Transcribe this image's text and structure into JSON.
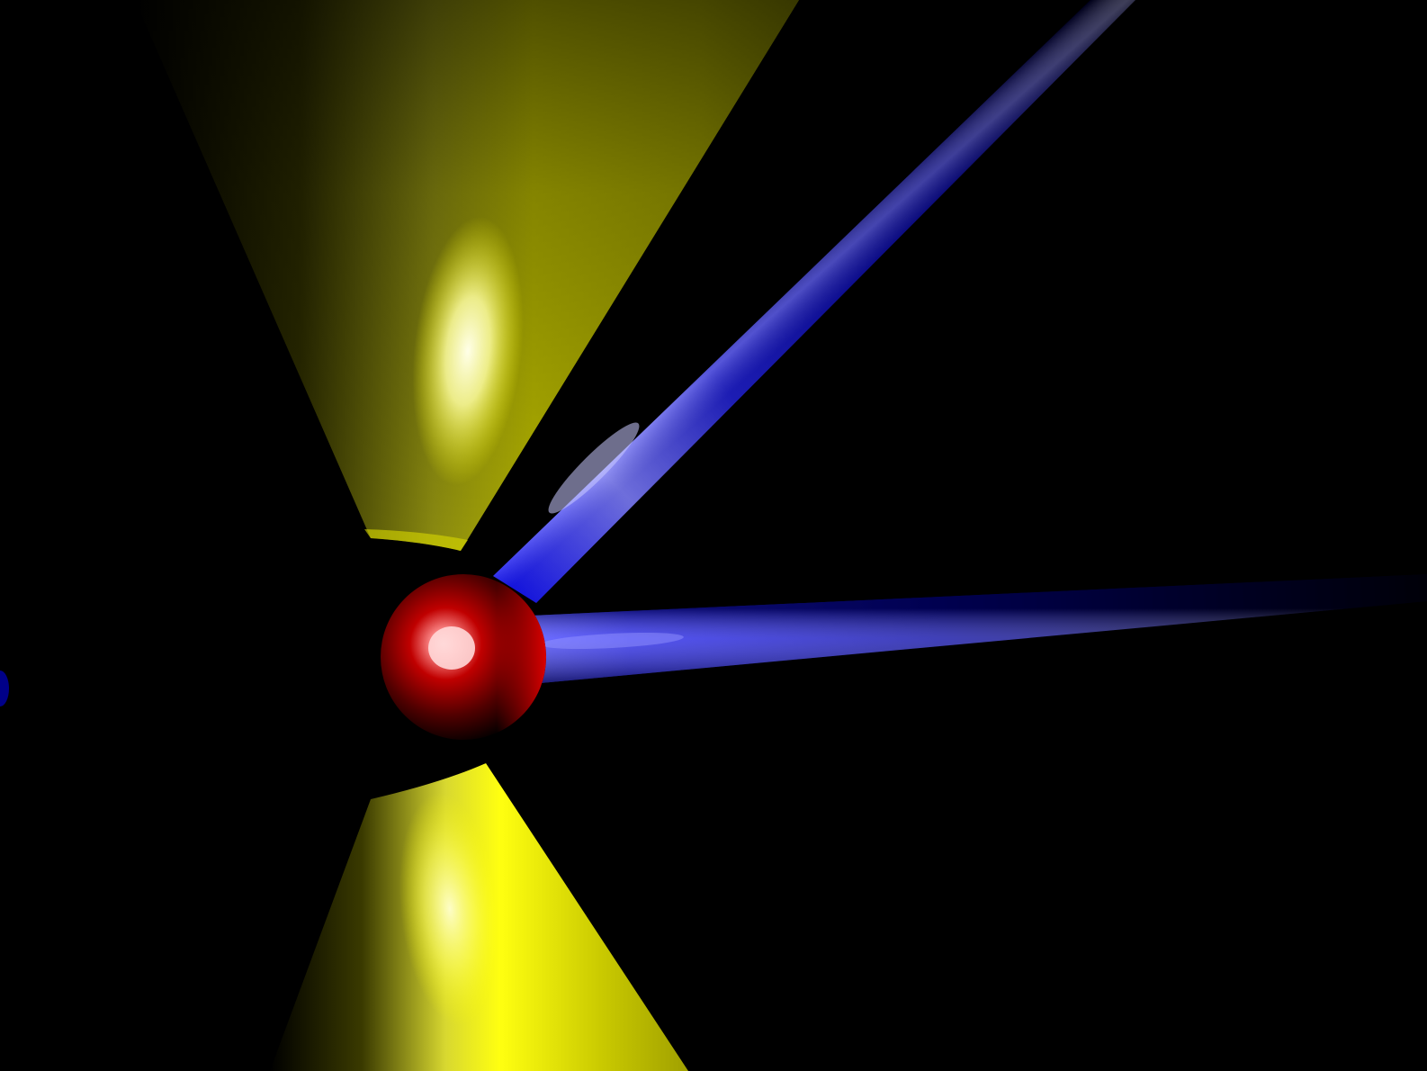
{
  "scene": {
    "background_color": "#000000",
    "objects": [
      {
        "kind": "sphere",
        "color": "#ff0000",
        "highlight_color": "#ffd0d0"
      },
      {
        "kind": "cone-upper",
        "color": "#ffff00",
        "highlight_color": "#ffffe0"
      },
      {
        "kind": "cone-lower",
        "color": "#ffff00",
        "highlight_color": "#ffffe0"
      },
      {
        "kind": "rod-diagonal",
        "color": "#0000ff",
        "highlight_color": "#c8c8ff"
      },
      {
        "kind": "rod-horizontal",
        "color": "#0000ff",
        "highlight_color": "#c8c8ff"
      },
      {
        "kind": "rod-stub-left",
        "color": "#0000aa"
      }
    ]
  }
}
